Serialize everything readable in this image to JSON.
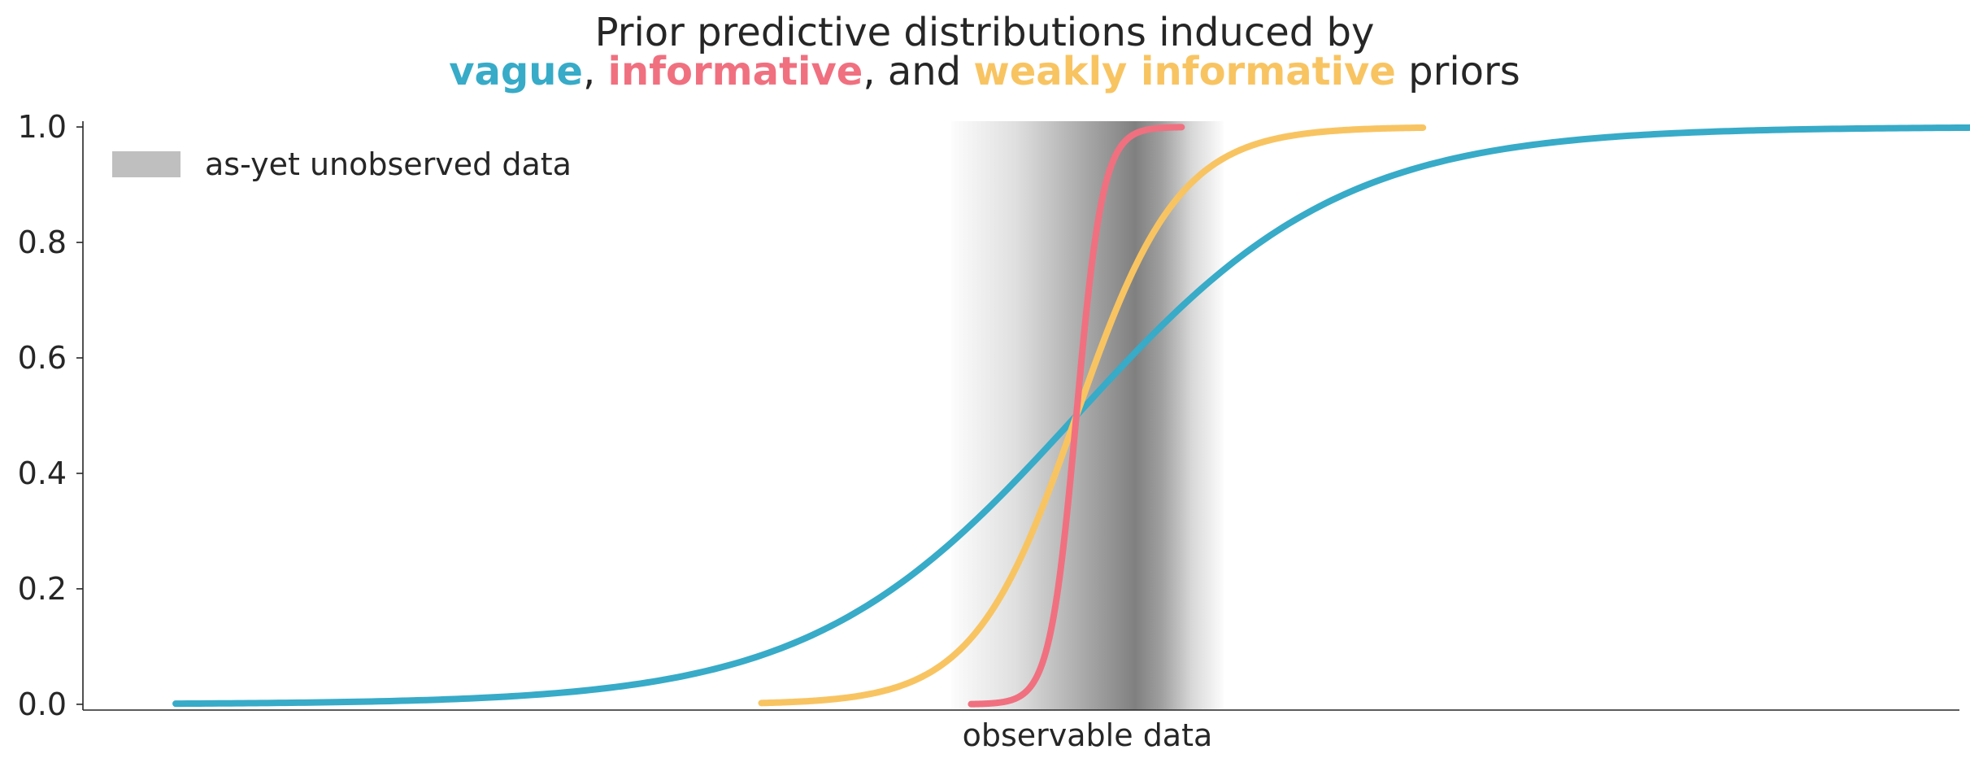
{
  "colors": {
    "vague": "#37abc8",
    "informative": "#f07080",
    "weakly_informative": "#f8c462",
    "band": "#808080",
    "legend_patch": "#bfbfbf",
    "axis": "#262626"
  },
  "chart_data": {
    "type": "line",
    "title": {
      "line1": "Prior predictive distributions induced by",
      "line2": {
        "vague": "vague",
        "sep1": ", ",
        "informative": "informative",
        "sep2": ", and ",
        "weakly_informative": "weakly informative",
        "suffix": " priors"
      }
    },
    "xlabel": "observable data",
    "ylabel": "",
    "xlim": [
      -10.5,
      15
    ],
    "ylim": [
      -0.01,
      1.01
    ],
    "yticks": [
      0.0,
      0.2,
      0.4,
      0.6,
      0.8,
      1.0
    ],
    "ytick_labels": [
      "0.0",
      "0.2",
      "0.4",
      "0.6",
      "0.8",
      "1.0"
    ],
    "legend": {
      "position": "upper-left",
      "label": "as-yet unobserved data"
    },
    "band": {
      "x_start": 1.3,
      "x_end": 5.0,
      "center": 3.8
    },
    "series": [
      {
        "name": "vague",
        "color_key": "vague",
        "x_start": -9.24,
        "x_end": 15.7,
        "center": 3.0,
        "scale": 1.8
      },
      {
        "name": "weakly informative",
        "color_key": "weakly_informative",
        "x_start": -1.28,
        "x_end": 7.71,
        "center": 3.0,
        "scale": 0.7
      },
      {
        "name": "informative",
        "color_key": "informative",
        "x_start": 1.57,
        "x_end": 4.43,
        "center": 3.0,
        "scale": 0.18
      }
    ]
  }
}
